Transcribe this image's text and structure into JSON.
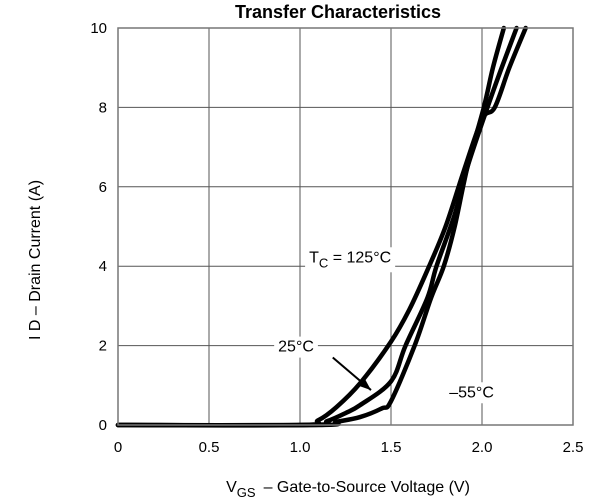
{
  "chart_data": {
    "type": "line",
    "title": "Transfer Characteristics",
    "xlabel": "VGS – Gate-to-Source Voltage (V)",
    "xlabel_main": "V",
    "xlabel_sub": "GS",
    "xlabel_rest": "–  Gate-to-Source Voltage (V)",
    "ylabel": "I D – Drain Current (A)",
    "xlim": [
      0,
      2.5
    ],
    "ylim": [
      0,
      10
    ],
    "xticks": [
      0,
      0.5,
      1.0,
      1.5,
      2.0,
      2.5
    ],
    "xtick_labels": [
      "0",
      "0.5",
      "1.0",
      "1.5",
      "2.0",
      "2.5"
    ],
    "yticks": [
      0,
      2,
      4,
      6,
      8,
      10
    ],
    "ytick_labels": [
      "0",
      "2",
      "4",
      "6",
      "8",
      "10"
    ],
    "grid": true,
    "legend_position": "inline annotations",
    "series": [
      {
        "name": "TC = 125°C",
        "x": [
          0,
          1.0,
          1.1,
          1.2,
          1.33,
          1.5,
          1.6,
          1.7,
          1.8,
          1.9,
          2.0,
          2.07,
          2.15,
          2.24
        ],
        "y": [
          0,
          0,
          0.12,
          0.45,
          1.05,
          2.1,
          2.9,
          3.9,
          5.0,
          6.4,
          7.7,
          8.0,
          9.0,
          10.0
        ]
      },
      {
        "name": "25°C",
        "x": [
          0,
          1.05,
          1.15,
          1.25,
          1.33,
          1.5,
          1.58,
          1.7,
          1.75,
          1.85,
          1.92,
          2.03,
          2.1,
          2.19
        ],
        "y": [
          0,
          0,
          0.1,
          0.3,
          0.5,
          1.1,
          2.0,
          3.2,
          4.0,
          5.3,
          6.5,
          8.0,
          8.9,
          10.0
        ]
      },
      {
        "name": "–55°C",
        "x": [
          0,
          1.1,
          1.2,
          1.33,
          1.45,
          1.5,
          1.63,
          1.72,
          1.79,
          1.85,
          1.92,
          2.01,
          2.06,
          2.12
        ],
        "y": [
          0,
          0,
          0.08,
          0.2,
          0.42,
          0.6,
          2.0,
          3.2,
          4.0,
          5.0,
          6.5,
          8.0,
          9.0,
          10.0
        ]
      }
    ],
    "annotations": [
      {
        "text_main": "T",
        "text_sub": "C",
        "text_rest": " = 125°C",
        "x": 1.05,
        "y": 4.25
      },
      {
        "text": "25°C",
        "x": 0.88,
        "y": 2.0
      },
      {
        "text": "–55°C",
        "x": 1.82,
        "y": 0.85
      }
    ],
    "arrow": {
      "from": [
        1.18,
        1.7
      ],
      "to": [
        1.39,
        0.88
      ]
    }
  }
}
